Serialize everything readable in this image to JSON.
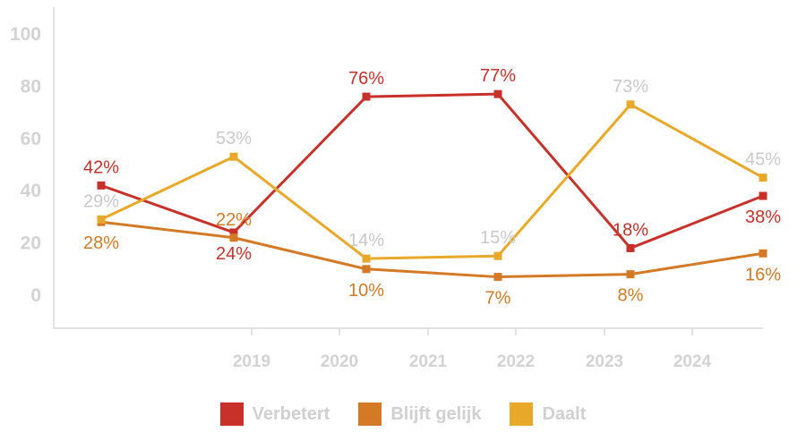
{
  "chart_data": {
    "type": "line",
    "x_categories": [
      "2019",
      "2020",
      "2021",
      "2022",
      "2023",
      "2024"
    ],
    "y_ticks": [
      "100",
      "80",
      "60",
      "40",
      "20",
      "0"
    ],
    "ylim": [
      0,
      100
    ],
    "grid": false,
    "legend_position": "bottom",
    "series": [
      {
        "name": "Verbetert",
        "color": "#c8312a",
        "values": [
          42,
          24,
          76,
          77,
          18,
          38
        ],
        "labels": [
          "42%",
          "24%",
          "76%",
          "77%",
          "18%",
          "38%"
        ],
        "label_color": "#c8312a"
      },
      {
        "name": "Blijft gelijk",
        "color": "#d47a26",
        "values": [
          28,
          22,
          10,
          7,
          8,
          16
        ],
        "labels": [
          "28%",
          "22%",
          "10%",
          "7%",
          "8%",
          "16%"
        ],
        "label_color": "#d47a26"
      },
      {
        "name": "Daalt",
        "color": "#e8a92a",
        "values": [
          29,
          53,
          14,
          15,
          73,
          45
        ],
        "labels": [
          "29%",
          "53%",
          "14%",
          "15%",
          "73%",
          "45%"
        ],
        "label_color": "#c9c9c9"
      }
    ]
  }
}
